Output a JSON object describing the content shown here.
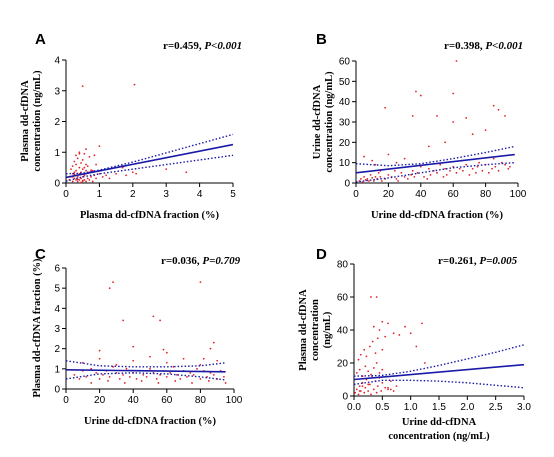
{
  "chart_data": [
    {
      "panel": "A",
      "type": "scatter",
      "stat": {
        "r": "r=0.459, ",
        "p": "P<0.001"
      },
      "xlabel": "Plasma dd-cfDNA fraction (%)",
      "ylabel": [
        "Plasma dd-cfDNA",
        "concentration (ng/mL)"
      ],
      "xlim": [
        0,
        5
      ],
      "ylim": [
        0,
        4
      ],
      "xticks": [
        0,
        1,
        2,
        3,
        4,
        5
      ],
      "yticks": [
        0,
        1,
        2,
        3,
        4
      ],
      "regression": {
        "x": [
          0,
          5
        ],
        "y": [
          0.18,
          1.25
        ]
      },
      "ci_upper": {
        "x": [
          0,
          0.5,
          1,
          2,
          3,
          4,
          5
        ],
        "y": [
          0.3,
          0.32,
          0.42,
          0.68,
          0.98,
          1.28,
          1.58
        ]
      },
      "ci_lower": {
        "x": [
          0,
          0.5,
          1,
          2,
          3,
          4,
          5
        ],
        "y": [
          0.06,
          0.2,
          0.3,
          0.45,
          0.6,
          0.75,
          0.9
        ]
      },
      "points": {
        "x": [
          0.1,
          0.15,
          0.2,
          0.2,
          0.25,
          0.3,
          0.3,
          0.3,
          0.35,
          0.35,
          0.4,
          0.4,
          0.4,
          0.45,
          0.45,
          0.5,
          0.5,
          0.5,
          0.55,
          0.55,
          0.6,
          0.6,
          0.6,
          0.65,
          0.7,
          0.7,
          0.75,
          0.8,
          0.85,
          0.9,
          0.2,
          0.25,
          0.35,
          0.45,
          0.5,
          0.3,
          0.4,
          0.6,
          0.15,
          0.25,
          0.55,
          0.65,
          0.8,
          1.0,
          1.1,
          1.2,
          1.3,
          1.5,
          1.7,
          1.8,
          2.0,
          2.1,
          0.5,
          0.6,
          0.4,
          0.7,
          0.9,
          1.0,
          0.3,
          0.2,
          0.45,
          2.05,
          0.35,
          0.5,
          0.25,
          0.75,
          0.85,
          0.55,
          3.0,
          3.6
        ],
        "y": [
          0.1,
          0.2,
          0.05,
          0.3,
          0.15,
          0.1,
          0.25,
          0.4,
          0.05,
          0.2,
          0.1,
          0.3,
          0.5,
          0.15,
          0.35,
          0.05,
          0.2,
          0.45,
          0.1,
          0.25,
          0.05,
          0.3,
          0.6,
          0.15,
          0.1,
          0.35,
          0.2,
          0.05,
          0.25,
          0.15,
          0.55,
          0.7,
          0.8,
          0.65,
          0.75,
          0.9,
          1.0,
          0.4,
          0.45,
          0.35,
          0.5,
          0.55,
          0.4,
          0.3,
          0.2,
          0.25,
          0.15,
          0.3,
          0.5,
          0.25,
          0.35,
          0.3,
          3.15,
          1.1,
          0.95,
          0.85,
          0.6,
          1.2,
          0.6,
          0.2,
          0.02,
          3.2,
          0.12,
          0.08,
          0.28,
          0.42,
          0.9,
          0.95,
          0.45,
          0.35
        ]
      }
    },
    {
      "panel": "B",
      "type": "scatter",
      "stat": {
        "r": "r=0.398, ",
        "p": "P<0.001"
      },
      "xlabel": "Urine dd-cfDNA fraction (%)",
      "ylabel": [
        "Urine dd-cfDNA",
        "concentration (ng/mL)"
      ],
      "xlim": [
        0,
        100
      ],
      "ylim": [
        0,
        60
      ],
      "xticks": [
        0,
        20,
        40,
        60,
        80,
        100
      ],
      "yticks": [
        0,
        10,
        20,
        30,
        40,
        50,
        60
      ],
      "regression": {
        "x": [
          0,
          98
        ],
        "y": [
          5,
          14
        ]
      },
      "ci_upper": {
        "x": [
          0,
          20,
          40,
          60,
          80,
          98
        ],
        "y": [
          9.5,
          8.5,
          9.5,
          12,
          15,
          18
        ]
      },
      "ci_lower": {
        "x": [
          0,
          20,
          40,
          60,
          80,
          98
        ],
        "y": [
          0.5,
          2.5,
          5,
          7.5,
          9,
          10
        ]
      },
      "points": {
        "x": [
          2,
          3,
          4,
          5,
          6,
          7,
          8,
          9,
          10,
          11,
          12,
          13,
          14,
          15,
          16,
          18,
          20,
          22,
          24,
          25,
          26,
          28,
          30,
          32,
          34,
          35,
          36,
          38,
          40,
          42,
          44,
          45,
          46,
          48,
          50,
          52,
          54,
          55,
          56,
          58,
          60,
          62,
          64,
          65,
          66,
          68,
          70,
          72,
          74,
          75,
          76,
          78,
          80,
          82,
          84,
          85,
          86,
          88,
          90,
          92,
          94,
          95,
          5,
          10,
          15,
          20,
          25,
          30,
          12,
          18,
          35,
          37,
          40,
          50,
          55,
          60,
          62,
          68,
          72,
          80,
          85,
          88,
          92,
          60,
          45
        ],
        "y": [
          1,
          2,
          0.5,
          3,
          1.5,
          2,
          1,
          4,
          2.5,
          1,
          3,
          2,
          5,
          3,
          1,
          2,
          4,
          3,
          6,
          2,
          1,
          5,
          3,
          2,
          4,
          6,
          3,
          5,
          8,
          3,
          2,
          7,
          4,
          6,
          5,
          9,
          3,
          7,
          4,
          6,
          8,
          5,
          7,
          11,
          6,
          9,
          4,
          7,
          5,
          8,
          10,
          6,
          9,
          5,
          7,
          12,
          8,
          6,
          10,
          9,
          7,
          8,
          13,
          11,
          6,
          14,
          10,
          12,
          9,
          37,
          33,
          45,
          43,
          33,
          20,
          44,
          60,
          32,
          24,
          26,
          38,
          36,
          33,
          30,
          18
        ],
        "note_x": [],
        "note_y": []
      }
    },
    {
      "panel": "C",
      "type": "scatter",
      "stat": {
        "r": "r=0.036, ",
        "p": "P=0.709"
      },
      "xlabel": "Urine dd-cfDNA fraction (%)",
      "ylabel": [
        "Plasma dd-cfDNA fraction (%)"
      ],
      "xlim": [
        0,
        100
      ],
      "ylim": [
        0,
        6
      ],
      "xticks": [
        0,
        20,
        40,
        60,
        80,
        100
      ],
      "yticks": [
        0,
        1,
        2,
        3,
        4,
        5,
        6
      ],
      "regression": {
        "x": [
          0,
          95
        ],
        "y": [
          0.95,
          0.85
        ]
      },
      "ci_upper": {
        "x": [
          0,
          20,
          40,
          60,
          80,
          95
        ],
        "y": [
          1.4,
          1.15,
          1.1,
          1.1,
          1.15,
          1.3
        ]
      },
      "ci_lower": {
        "x": [
          0,
          20,
          40,
          60,
          80,
          95
        ],
        "y": [
          0.5,
          0.75,
          0.8,
          0.75,
          0.6,
          0.45
        ]
      },
      "points": {
        "x": [
          5,
          8,
          10,
          12,
          15,
          18,
          20,
          22,
          24,
          26,
          28,
          30,
          32,
          34,
          36,
          38,
          40,
          42,
          44,
          46,
          48,
          50,
          52,
          54,
          56,
          58,
          60,
          62,
          64,
          66,
          68,
          70,
          72,
          74,
          76,
          78,
          80,
          82,
          84,
          86,
          88,
          90,
          92,
          94,
          10,
          20,
          30,
          40,
          50,
          60,
          70,
          80,
          90,
          15,
          25,
          35,
          45,
          55,
          65,
          75,
          85,
          95,
          26,
          28,
          34,
          52,
          56,
          58,
          80,
          82,
          86,
          88,
          20,
          40,
          60
        ],
        "y": [
          0.7,
          0.5,
          0.9,
          0.6,
          1.0,
          0.8,
          0.5,
          0.7,
          0.9,
          0.6,
          1.1,
          0.8,
          0.5,
          0.7,
          1.0,
          0.6,
          0.8,
          0.5,
          0.9,
          0.7,
          0.6,
          1.0,
          0.8,
          0.5,
          0.7,
          0.9,
          0.6,
          0.8,
          1.1,
          0.7,
          0.5,
          0.9,
          0.6,
          0.8,
          0.7,
          1.0,
          0.5,
          0.9,
          0.6,
          0.8,
          0.7,
          0.5,
          0.9,
          0.6,
          1.3,
          1.5,
          1.2,
          1.4,
          1.6,
          1.3,
          1.5,
          1.2,
          1.4,
          0.3,
          0.4,
          0.3,
          0.4,
          0.3,
          0.4,
          0.3,
          0.4,
          0.3,
          5.0,
          5.3,
          3.4,
          3.6,
          3.4,
          1.95,
          5.3,
          1.5,
          2.0,
          2.3,
          1.9,
          2.1,
          1.8
        ]
      }
    },
    {
      "panel": "D",
      "type": "scatter",
      "stat": {
        "r": "r=0.261, ",
        "p": "P=0.005"
      },
      "xlabel": [
        "Urine dd-cfDNA",
        "concentration (ng/mL)"
      ],
      "ylabel": [
        "Plasma dd-cfDNA",
        "concentration",
        "(ng/mL)"
      ],
      "xlim": [
        0,
        3
      ],
      "ylim": [
        0,
        80
      ],
      "xticks": [
        "0.0",
        "0.5",
        "1.0",
        "1.5",
        "2.0",
        "2.5",
        "3.0"
      ],
      "yticks": [
        0,
        20,
        40,
        60,
        80
      ],
      "regression": {
        "x": [
          0,
          3
        ],
        "y": [
          10,
          19
        ]
      },
      "ci_upper": {
        "x": [
          0,
          0.5,
          1,
          1.5,
          2,
          2.5,
          3
        ],
        "y": [
          12,
          12.5,
          15,
          18.5,
          22.5,
          26.5,
          31
        ]
      },
      "ci_lower": {
        "x": [
          0,
          0.5,
          1,
          1.5,
          2,
          2.5,
          3
        ],
        "y": [
          7,
          9.5,
          9.5,
          9,
          8,
          6.5,
          5
        ]
      },
      "points": {
        "x": [
          0.02,
          0.05,
          0.08,
          0.1,
          0.12,
          0.15,
          0.18,
          0.2,
          0.22,
          0.25,
          0.28,
          0.3,
          0.32,
          0.35,
          0.38,
          0.4,
          0.42,
          0.45,
          0.48,
          0.5,
          0.55,
          0.6,
          0.65,
          0.7,
          0.75,
          0.05,
          0.1,
          0.15,
          0.2,
          0.25,
          0.3,
          0.35,
          0.4,
          0.45,
          0.5,
          0.08,
          0.12,
          0.18,
          0.22,
          0.28,
          0.33,
          0.38,
          0.42,
          0.5,
          0.6,
          0.7,
          0.8,
          0.9,
          1.0,
          1.1,
          1.2,
          1.25,
          0.3,
          0.4,
          0.5,
          0.45,
          0.35,
          0.55,
          0.25,
          0.6,
          0.15,
          0.65,
          0.1
        ],
        "y": [
          2,
          4,
          1,
          6,
          3,
          8,
          2,
          5,
          10,
          3,
          7,
          1,
          12,
          4,
          9,
          2,
          6,
          11,
          3,
          8,
          5,
          4,
          9,
          3,
          6,
          14,
          16,
          12,
          18,
          15,
          13,
          17,
          20,
          14,
          16,
          22,
          25,
          28,
          24,
          30,
          33,
          26,
          35,
          28,
          44,
          38,
          37,
          42,
          38,
          30,
          44,
          20,
          60,
          60,
          45,
          40,
          42,
          36,
          7,
          5,
          6,
          4,
          3
        ]
      }
    }
  ]
}
